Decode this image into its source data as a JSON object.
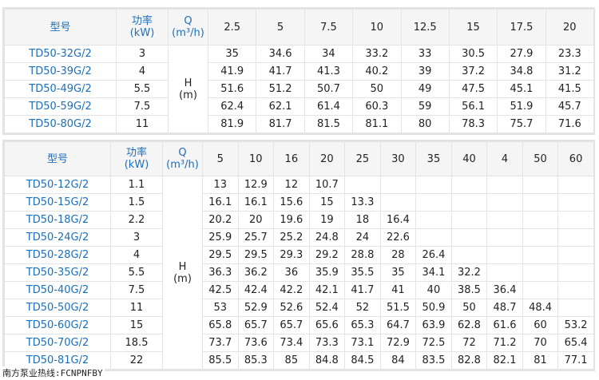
{
  "labels": {
    "model": "型号",
    "power": "功率\n(kW)",
    "q": "Q\n(m³/h)",
    "h": "H\n(m)"
  },
  "table1": {
    "flows": [
      "2.5",
      "5",
      "7.5",
      "10",
      "12.5",
      "15",
      "17.5",
      "20"
    ],
    "rows": [
      {
        "model": "TD50-32G/2",
        "power": "3",
        "heads": [
          "35",
          "34.6",
          "34",
          "33.2",
          "33",
          "30.5",
          "27.9",
          "23.3"
        ]
      },
      {
        "model": "TD50-39G/2",
        "power": "4",
        "heads": [
          "41.9",
          "41.7",
          "41.3",
          "40.2",
          "39",
          "37.2",
          "34.8",
          "31.2"
        ]
      },
      {
        "model": "TD50-49G/2",
        "power": "5.5",
        "heads": [
          "51.6",
          "51.2",
          "50.7",
          "50",
          "49",
          "47.5",
          "45.1",
          "41.5"
        ]
      },
      {
        "model": "TD50-59G/2",
        "power": "7.5",
        "heads": [
          "62.4",
          "62.1",
          "61.4",
          "60.3",
          "59",
          "56.1",
          "51.9",
          "45.7"
        ]
      },
      {
        "model": "TD50-80G/2",
        "power": "11",
        "heads": [
          "81.9",
          "81.7",
          "81.5",
          "81.1",
          "80",
          "78.3",
          "75.7",
          "71.6"
        ]
      }
    ]
  },
  "table2": {
    "flows": [
      "5",
      "10",
      "16",
      "20",
      "25",
      "30",
      "35",
      "40",
      "4",
      "50",
      "60"
    ],
    "rows": [
      {
        "model": "TD50-12G/2",
        "power": "1.1",
        "heads": [
          "13",
          "12.9",
          "12",
          "10.7",
          "",
          "",
          "",
          "",
          "",
          "",
          ""
        ]
      },
      {
        "model": "TD50-15G/2",
        "power": "1.5",
        "heads": [
          "16.1",
          "16.1",
          "15.6",
          "15",
          "13.3",
          "",
          "",
          "",
          "",
          "",
          ""
        ]
      },
      {
        "model": "TD50-18G/2",
        "power": "2.2",
        "heads": [
          "20.2",
          "20",
          "19.6",
          "19",
          "18",
          "16.4",
          "",
          "",
          "",
          "",
          ""
        ]
      },
      {
        "model": "TD50-24G/2",
        "power": "3",
        "heads": [
          "25.9",
          "25.7",
          "25.2",
          "24.8",
          "24",
          "22.6",
          "",
          "",
          "",
          "",
          ""
        ]
      },
      {
        "model": "TD50-28G/2",
        "power": "4",
        "heads": [
          "29.5",
          "29.5",
          "29.3",
          "29.2",
          "28.8",
          "28",
          "26.4",
          "",
          "",
          "",
          ""
        ]
      },
      {
        "model": "TD50-35G/2",
        "power": "5.5",
        "heads": [
          "36.3",
          "36.2",
          "36",
          "35.9",
          "35.5",
          "35",
          "34.1",
          "32.2",
          "",
          "",
          ""
        ]
      },
      {
        "model": "TD50-40G/2",
        "power": "7.5",
        "heads": [
          "42.5",
          "42.4",
          "42.2",
          "42.1",
          "41.7",
          "41",
          "40",
          "38.5",
          "36.4",
          "",
          ""
        ]
      },
      {
        "model": "TD50-50G/2",
        "power": "11",
        "heads": [
          "53",
          "52.9",
          "52.6",
          "52.4",
          "52",
          "51.5",
          "50.9",
          "50",
          "48.7",
          "48.4",
          ""
        ]
      },
      {
        "model": "TD50-60G/2",
        "power": "15",
        "heads": [
          "65.8",
          "65.7",
          "65.7",
          "65.6",
          "65.3",
          "64.7",
          "63.9",
          "62.8",
          "61.6",
          "60",
          "53.2"
        ]
      },
      {
        "model": "TD50-70G/2",
        "power": "18.5",
        "heads": [
          "73.7",
          "73.6",
          "73.4",
          "73.3",
          "73.1",
          "72.9",
          "72.5",
          "72",
          "71.2",
          "70",
          "65.4"
        ]
      },
      {
        "model": "TD50-81G/2",
        "power": "22",
        "heads": [
          "85.5",
          "85.3",
          "85",
          "84.8",
          "84.5",
          "84",
          "83.5",
          "82.8",
          "82.1",
          "81",
          "77.1"
        ]
      }
    ]
  },
  "footer": "南方泵业热线:FCNPNFBY"
}
